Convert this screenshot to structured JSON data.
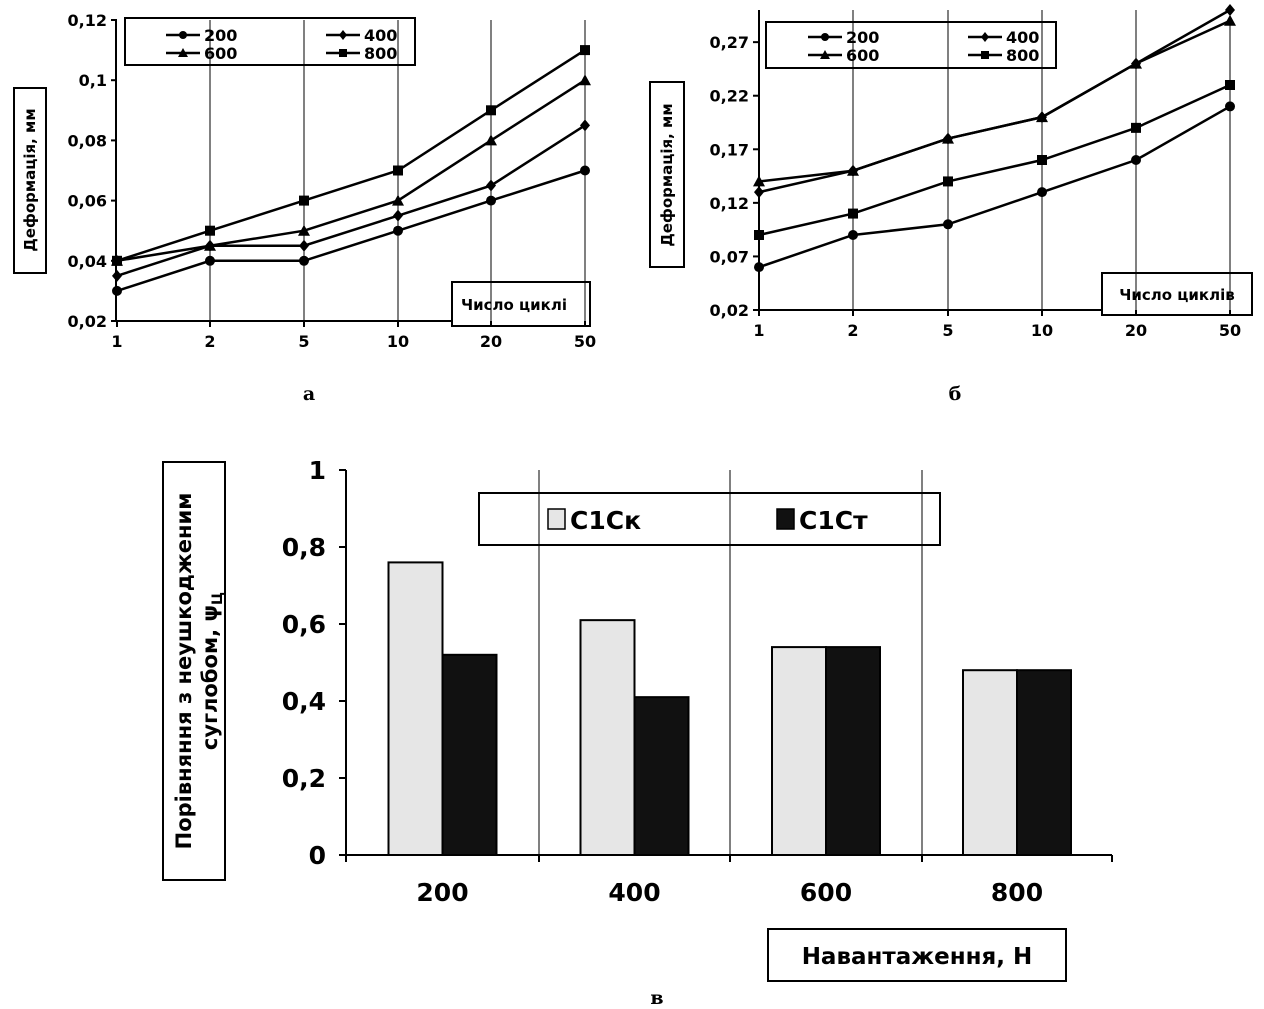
{
  "chart_data": [
    {
      "type": "line",
      "panel_label": "а",
      "x": [
        "1",
        "2",
        "5",
        "10",
        "20",
        "50"
      ],
      "ylabel": "Деформація, мм",
      "xlabel": "Число циклі",
      "ylim": [
        0.02,
        0.12
      ],
      "y_ticks": [
        "0,02",
        "0,04",
        "0,06",
        "0,08",
        "0,1",
        "0,12"
      ],
      "grid": "vertical",
      "legend": "top-left",
      "series": [
        {
          "name": "200",
          "marker": "circle",
          "values": [
            0.03,
            0.04,
            0.04,
            0.05,
            0.06,
            0.07
          ]
        },
        {
          "name": "400",
          "marker": "diamond",
          "values": [
            0.035,
            0.045,
            0.045,
            0.055,
            0.065,
            0.085
          ]
        },
        {
          "name": "600",
          "marker": "triangle",
          "values": [
            0.04,
            0.045,
            0.05,
            0.06,
            0.08,
            0.1
          ]
        },
        {
          "name": "800",
          "marker": "square",
          "values": [
            0.04,
            0.05,
            0.06,
            0.07,
            0.09,
            0.11
          ]
        }
      ]
    },
    {
      "type": "line",
      "panel_label": "б",
      "x": [
        "1",
        "2",
        "5",
        "10",
        "20",
        "50"
      ],
      "ylabel": "Деформація, мм",
      "xlabel": "Число циклів",
      "ylim": [
        0.02,
        0.3
      ],
      "y_ticks": [
        "0,02",
        "0,07",
        "0,12",
        "0,17",
        "0,22",
        "0,27"
      ],
      "grid": "vertical",
      "legend": "top-left",
      "series": [
        {
          "name": "200",
          "marker": "circle",
          "values": [
            0.06,
            0.09,
            0.1,
            0.13,
            0.16,
            0.21
          ]
        },
        {
          "name": "400",
          "marker": "diamond",
          "values": [
            0.13,
            0.15,
            0.18,
            0.2,
            0.25,
            0.3
          ]
        },
        {
          "name": "600",
          "marker": "triangle",
          "values": [
            0.14,
            0.15,
            0.18,
            0.2,
            0.25,
            0.29
          ]
        },
        {
          "name": "800",
          "marker": "square",
          "values": [
            0.09,
            0.11,
            0.14,
            0.16,
            0.19,
            0.23
          ]
        }
      ]
    },
    {
      "type": "bar",
      "panel_label": "в",
      "categories": [
        "200",
        "400",
        "600",
        "800"
      ],
      "ylabel_line1": "Порівняння з неушкодженим",
      "ylabel_line2": "суглобом, ψ",
      "ylabel_sub": "Ц",
      "xlabel": "Навантаження, Н",
      "ylim": [
        0,
        1
      ],
      "y_ticks": [
        "0",
        "0,2",
        "0,4",
        "0,6",
        "0,8",
        "1"
      ],
      "grid": "vertical",
      "legend": "top-center",
      "series": [
        {
          "name": "С1Ск",
          "color": "#e6e6e6",
          "values": [
            0.76,
            0.61,
            0.54,
            0.48
          ]
        },
        {
          "name": "С1Ст",
          "color": "#111111",
          "values": [
            0.52,
            0.41,
            0.54,
            0.48
          ]
        }
      ]
    }
  ]
}
